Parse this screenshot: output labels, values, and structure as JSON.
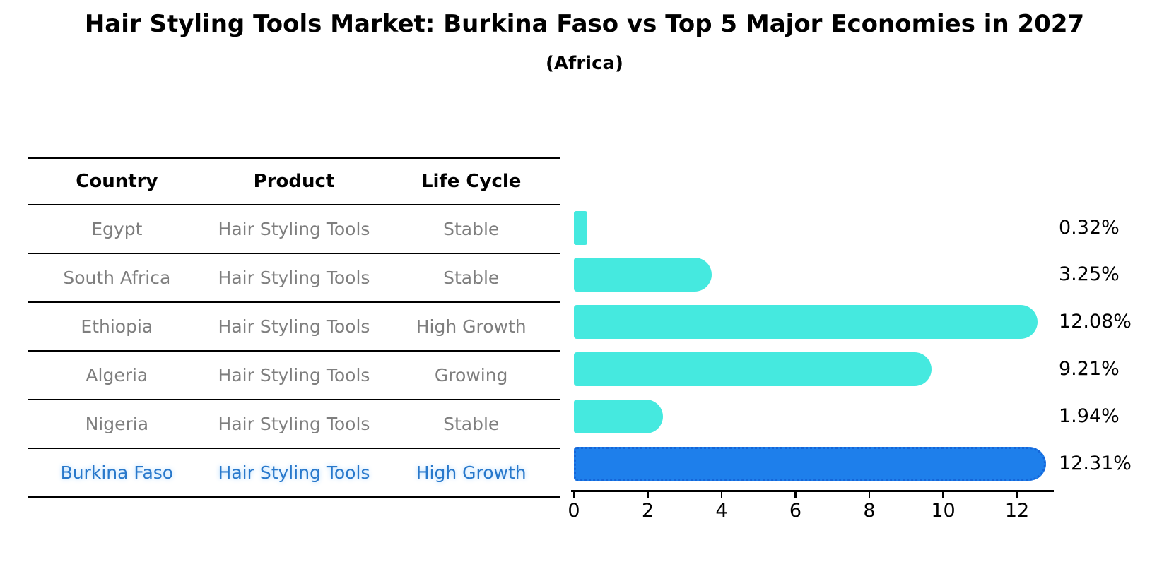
{
  "title": "Hair Styling Tools Market: Burkina Faso vs Top 5 Major Economies in 2027",
  "subtitle": "(Africa)",
  "table": {
    "headers": [
      "Country",
      "Product",
      "Life Cycle"
    ],
    "rows": [
      {
        "country": "Egypt",
        "product": "Hair Styling Tools",
        "life_cycle": "Stable",
        "highlight": false
      },
      {
        "country": "South Africa",
        "product": "Hair Styling Tools",
        "life_cycle": "Stable",
        "highlight": false
      },
      {
        "country": "Ethiopia",
        "product": "Hair Styling Tools",
        "life_cycle": "High Growth",
        "highlight": false
      },
      {
        "country": "Algeria",
        "product": "Hair Styling Tools",
        "life_cycle": "Growing",
        "highlight": false
      },
      {
        "country": "Nigeria",
        "product": "Hair Styling Tools",
        "life_cycle": "Stable",
        "highlight": false
      },
      {
        "country": "Burkina Faso",
        "product": "Hair Styling Tools",
        "life_cycle": "High Growth",
        "highlight": true
      }
    ]
  },
  "chart_data": {
    "type": "bar",
    "orientation": "horizontal",
    "title": "Hair Styling Tools Market: Burkina Faso vs Top 5 Major Economies in 2027 (Africa)",
    "categories": [
      "Egypt",
      "South Africa",
      "Ethiopia",
      "Algeria",
      "Nigeria",
      "Burkina Faso"
    ],
    "values": [
      0.32,
      3.25,
      12.08,
      9.21,
      1.94,
      12.31
    ],
    "value_labels": [
      "0.32%",
      "3.25%",
      "12.08%",
      "9.21%",
      "1.94%",
      "12.31%"
    ],
    "unit": "%",
    "xlim": [
      0,
      13
    ],
    "x_ticks": [
      0,
      2,
      4,
      6,
      8,
      10,
      12
    ],
    "x_tick_labels": [
      "0",
      "2",
      "4",
      "6",
      "8",
      "10",
      "12"
    ],
    "grid": false,
    "legend": false,
    "highlight_index": 5,
    "bar_color": "#45e9df",
    "highlight_color": "#1e7feb",
    "highlight_edge_color": "#1565d8",
    "highlight_text_color": "#2878cb",
    "text_color": "#7e7e7e"
  }
}
